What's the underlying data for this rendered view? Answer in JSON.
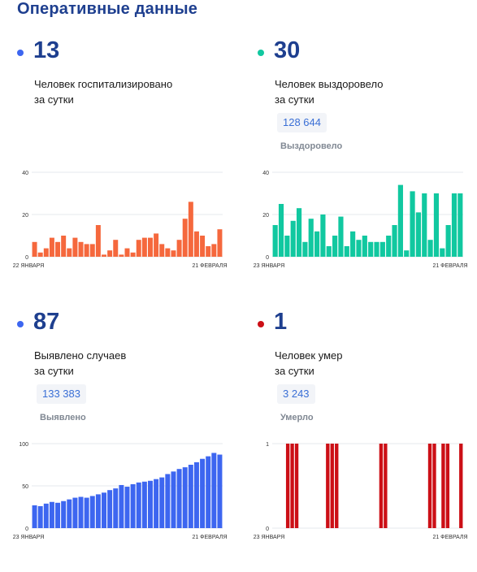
{
  "page": {
    "title": "Оперативные данные"
  },
  "panels": {
    "hospitalized": {
      "value": "13",
      "description": "Человек госпитализировано\nза сутки",
      "color": "#f5683d"
    },
    "recovered": {
      "value": "30",
      "description": "Человек выздоровело\nза сутки",
      "total": "128 644",
      "total_label": "Выздоровело",
      "color": "#11c8a0"
    },
    "cases": {
      "value": "87",
      "description": "Выявлено случаев\nза сутки",
      "total": "133 383",
      "total_label": "Выявлено",
      "color": "#3d66f0"
    },
    "deaths": {
      "value": "1",
      "description": "Человек умер\nза сутки",
      "total": "3 243",
      "total_label": "Умерло",
      "color": "#cc0f16"
    }
  },
  "chart_data": [
    {
      "type": "bar",
      "name": "hospitalized",
      "x_start_label": "22 ЯНВАРЯ",
      "x_end_label": "21 ФЕВРАЛЯ",
      "ylim": [
        0,
        40
      ],
      "yticks": [
        0,
        20,
        40
      ],
      "grid": true,
      "values": [
        7,
        2,
        4,
        9,
        7,
        10,
        4,
        9,
        7,
        6,
        6,
        15,
        1,
        3,
        8,
        1,
        4,
        2,
        8,
        9,
        9,
        11,
        6,
        4,
        3,
        8,
        18,
        26,
        12,
        10,
        5,
        6,
        13
      ],
      "color": "#f5683d"
    },
    {
      "type": "bar",
      "name": "recovered",
      "x_start_label": "23 ЯНВАРЯ",
      "x_end_label": "21 ФЕВРАЛЯ",
      "ylim": [
        0,
        40
      ],
      "yticks": [
        0,
        20,
        40
      ],
      "grid": true,
      "values": [
        15,
        25,
        10,
        17,
        23,
        7,
        18,
        12,
        20,
        5,
        10,
        19,
        5,
        12,
        8,
        10,
        7,
        7,
        7,
        10,
        15,
        34,
        3,
        31,
        21,
        30,
        8,
        30,
        4,
        15,
        30,
        30
      ],
      "color": "#11c8a0"
    },
    {
      "type": "bar",
      "name": "cases",
      "x_start_label": "23 ЯНВАРЯ",
      "x_end_label": "21 ФЕВРАЛЯ",
      "ylim": [
        0,
        100
      ],
      "yticks": [
        0,
        50,
        100
      ],
      "grid": true,
      "values": [
        27,
        26,
        29,
        31,
        30,
        32,
        34,
        36,
        37,
        36,
        38,
        40,
        42,
        45,
        47,
        51,
        49,
        52,
        54,
        55,
        56,
        58,
        60,
        64,
        67,
        70,
        72,
        75,
        78,
        82,
        85,
        89,
        87
      ],
      "color": "#3d66f0"
    },
    {
      "type": "bar",
      "name": "deaths",
      "x_start_label": "23 ЯНВАРЯ",
      "x_end_label": "21 ФЕВРАЛЯ",
      "ylim": [
        0,
        1
      ],
      "yticks": [
        0,
        1
      ],
      "grid": true,
      "values": [
        0,
        0,
        0,
        1,
        1,
        1,
        0,
        0,
        0,
        0,
        0,
        0,
        1,
        1,
        1,
        0,
        0,
        0,
        0,
        0,
        0,
        0,
        0,
        0,
        1,
        1,
        0,
        0,
        0,
        0,
        0,
        0,
        0,
        0,
        0,
        1,
        1,
        0,
        1,
        1,
        0,
        0,
        1
      ],
      "color": "#cc0f16"
    }
  ]
}
